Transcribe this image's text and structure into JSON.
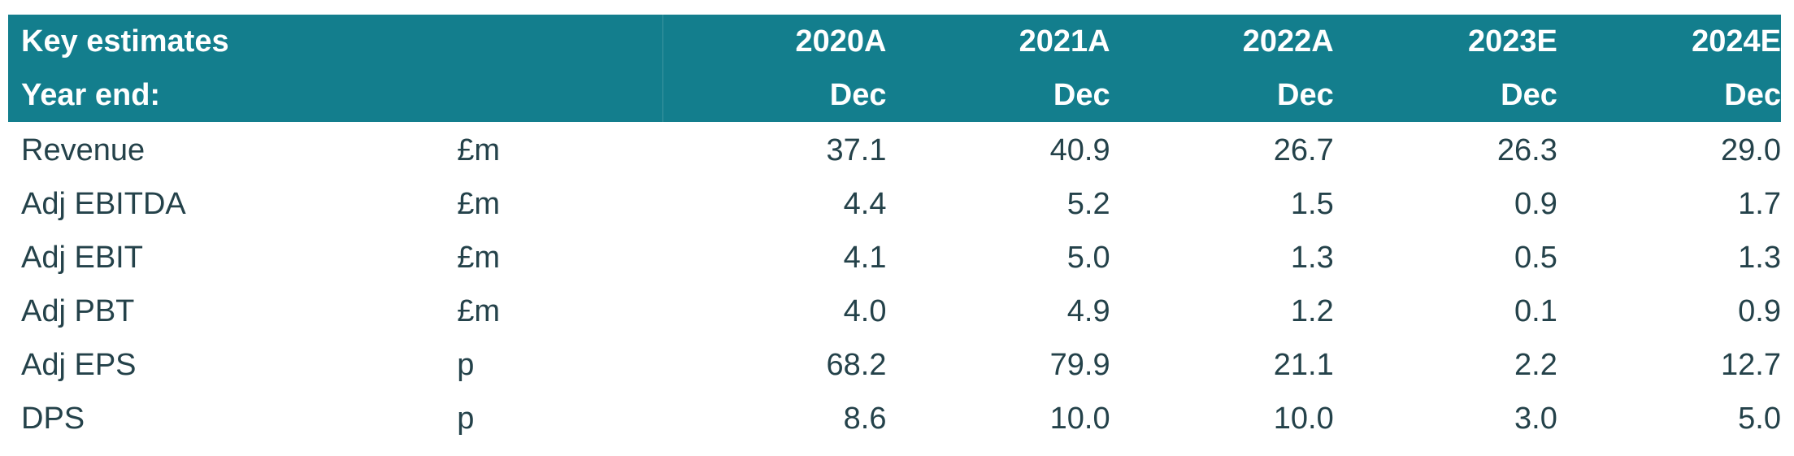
{
  "header": {
    "title": "Key estimates",
    "year_end_label": "Year end:",
    "years": [
      "2020A",
      "2021A",
      "2022A",
      "2023E",
      "2024E"
    ],
    "months": [
      "Dec",
      "Dec",
      "Dec",
      "Dec",
      "Dec"
    ]
  },
  "rows": [
    {
      "label": "Revenue",
      "unit": "£m",
      "values": [
        "37.1",
        "40.9",
        "26.7",
        "26.3",
        "29.0"
      ]
    },
    {
      "label": "Adj EBITDA",
      "unit": "£m",
      "values": [
        "4.4",
        "5.2",
        "1.5",
        "0.9",
        "1.7"
      ]
    },
    {
      "label": "Adj EBIT",
      "unit": "£m",
      "values": [
        "4.1",
        "5.0",
        "1.3",
        "0.5",
        "1.3"
      ]
    },
    {
      "label": "Adj PBT",
      "unit": "£m",
      "values": [
        "4.0",
        "4.9",
        "1.2",
        "0.1",
        "0.9"
      ]
    },
    {
      "label": "Adj EPS",
      "unit": "p",
      "values": [
        "68.2",
        "79.9",
        "21.1",
        "2.2",
        "12.7"
      ]
    },
    {
      "label": "DPS",
      "unit": "p",
      "values": [
        "8.6",
        "10.0",
        "10.0",
        "3.0",
        "5.0"
      ]
    }
  ],
  "colors": {
    "header_bg": "#137e8d",
    "header_text": "#ffffff",
    "body_text": "#24424a"
  }
}
